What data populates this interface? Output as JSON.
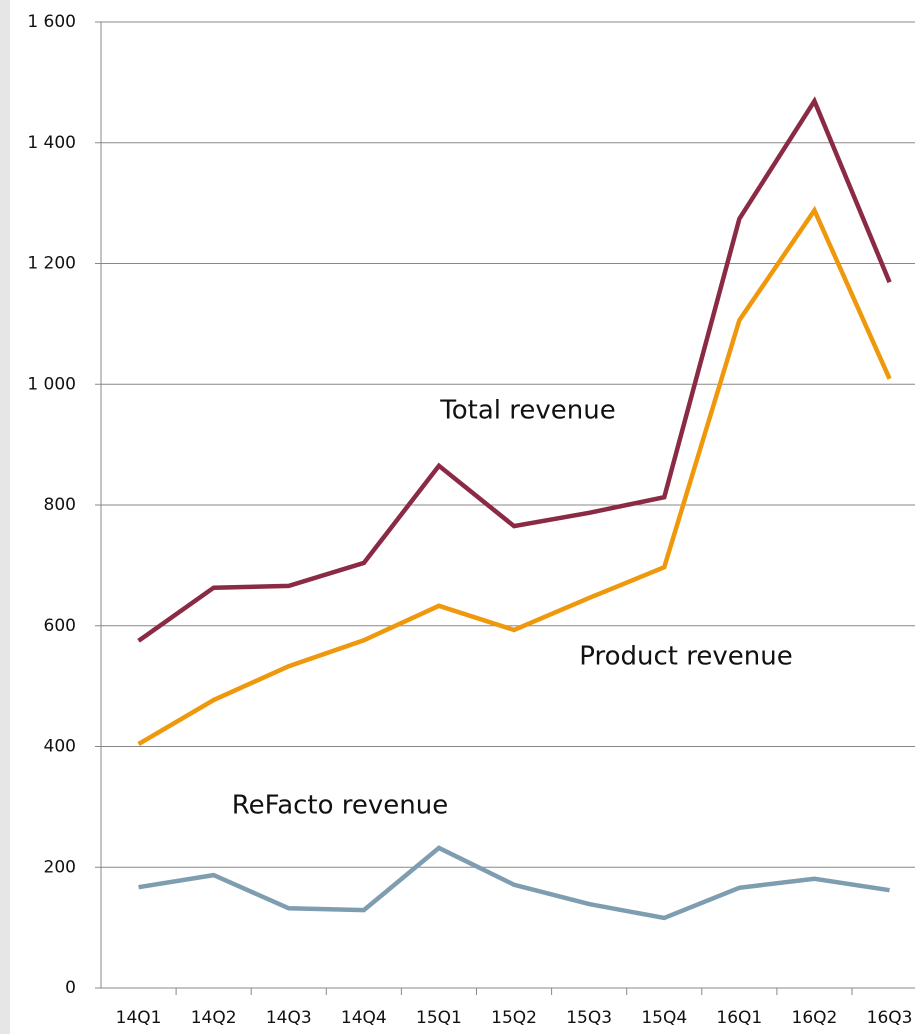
{
  "chart_data": {
    "type": "line",
    "categories": [
      "14Q1",
      "14Q2",
      "14Q3",
      "14Q4",
      "15Q1",
      "15Q2",
      "15Q3",
      "15Q4",
      "16Q1",
      "16Q2",
      "16Q3"
    ],
    "series": [
      {
        "name": "Total revenue",
        "color": "#8a2a44",
        "values": [
          575,
          663,
          666,
          704,
          865,
          765,
          787,
          813,
          1274,
          1469,
          1169
        ]
      },
      {
        "name": "Product revenue",
        "color": "#f0980c",
        "values": [
          404,
          477,
          533,
          576,
          633,
          593,
          646,
          697,
          1106,
          1288,
          1009
        ]
      },
      {
        "name": "ReFacto revenue",
        "color": "#7f9db0",
        "values": [
          167,
          187,
          132,
          129,
          232,
          171,
          139,
          116,
          166,
          181,
          162
        ]
      }
    ],
    "ylim": [
      0,
      1600
    ],
    "yticks": [
      0,
      200,
      400,
      600,
      800,
      {
        "value": 1000,
        "label": "1 000"
      },
      {
        "value": 1200,
        "label": "1 200"
      },
      {
        "value": 1400,
        "label": "1 400"
      },
      {
        "value": 1600,
        "label": "1 600"
      }
    ],
    "grid": true
  }
}
